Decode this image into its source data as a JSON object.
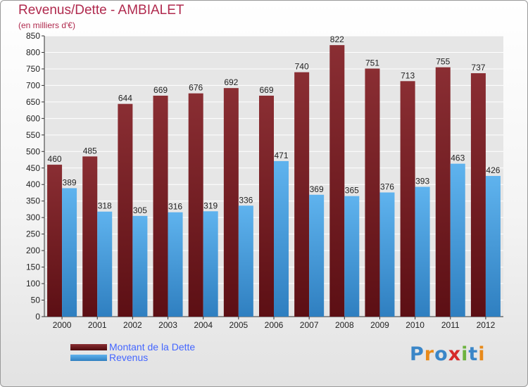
{
  "chart_data": {
    "type": "bar",
    "title": "Revenus/Dette - AMBIALET",
    "subtitle": "(en milliers d'€)",
    "xlabel": "",
    "ylabel": "",
    "categories": [
      "2000",
      "2001",
      "2002",
      "2003",
      "2004",
      "2005",
      "2006",
      "2007",
      "2008",
      "2009",
      "2010",
      "2011",
      "2012"
    ],
    "series": [
      {
        "name": "Montant de la Dette",
        "color": "#7a1f24",
        "values": [
          460,
          485,
          644,
          669,
          676,
          692,
          669,
          740,
          822,
          751,
          713,
          755,
          737
        ]
      },
      {
        "name": "Revenus",
        "color": "#4ea6e8",
        "values": [
          389,
          318,
          305,
          316,
          319,
          336,
          471,
          369,
          365,
          376,
          393,
          463,
          426
        ]
      }
    ],
    "ylim": [
      0,
      850
    ],
    "yticks": [
      0,
      50,
      100,
      150,
      200,
      250,
      300,
      350,
      400,
      450,
      500,
      550,
      600,
      650,
      700,
      750,
      800,
      850
    ],
    "grid": true,
    "legend_position": "bottom-left"
  },
  "logo": {
    "text": "Proxiti",
    "letter_colors": [
      "#3a86c8",
      "#e88a1a",
      "#3a86c8",
      "#d62a2a",
      "#6db33f",
      "#3a86c8",
      "#e88a1a"
    ]
  }
}
